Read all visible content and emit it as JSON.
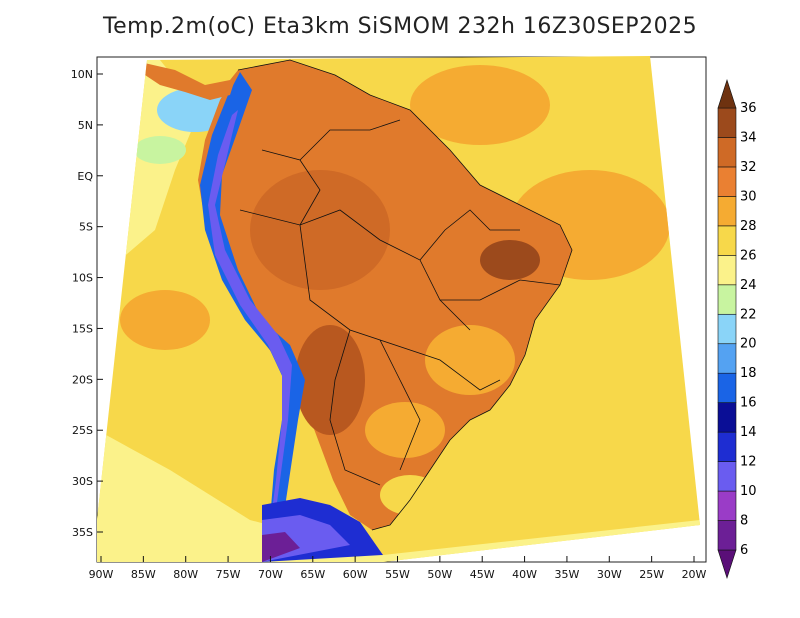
{
  "title": "Temp.2m(oC) Eta3km SiSMOM 232h 16Z30SEP2025",
  "map": {
    "variable": "2 m temperature",
    "units": "oC",
    "region": "South America",
    "lat_range": [
      -38,
      12
    ],
    "lon_range": [
      -91,
      -20
    ],
    "lat_ticks": [
      {
        "lat": 10,
        "label": "10N"
      },
      {
        "lat": 5,
        "label": "5N"
      },
      {
        "lat": 0,
        "label": "EQ"
      },
      {
        "lat": -5,
        "label": "5S"
      },
      {
        "lat": -10,
        "label": "10S"
      },
      {
        "lat": -15,
        "label": "15S"
      },
      {
        "lat": -20,
        "label": "20S"
      },
      {
        "lat": -25,
        "label": "25S"
      },
      {
        "lat": -30,
        "label": "30S"
      },
      {
        "lat": -35,
        "label": "35S"
      }
    ],
    "lon_ticks": [
      {
        "lon": -90,
        "label": "90W"
      },
      {
        "lon": -85,
        "label": "85W"
      },
      {
        "lon": -80,
        "label": "80W"
      },
      {
        "lon": -75,
        "label": "75W"
      },
      {
        "lon": -70,
        "label": "70W"
      },
      {
        "lon": -65,
        "label": "65W"
      },
      {
        "lon": -60,
        "label": "60W"
      },
      {
        "lon": -55,
        "label": "55W"
      },
      {
        "lon": -50,
        "label": "50W"
      },
      {
        "lon": -45,
        "label": "45W"
      },
      {
        "lon": -40,
        "label": "40W"
      },
      {
        "lon": -35,
        "label": "35W"
      },
      {
        "lon": -30,
        "label": "30W"
      },
      {
        "lon": -25,
        "label": "25W"
      },
      {
        "lon": -20,
        "label": "20W"
      }
    ]
  },
  "colorbar": {
    "labels": [
      "6",
      "8",
      "10",
      "12",
      "14",
      "16",
      "18",
      "20",
      "22",
      "24",
      "26",
      "28",
      "30",
      "32",
      "34",
      "36"
    ],
    "bins": [
      {
        "min": 4,
        "max": 6,
        "color": "#5a0f78"
      },
      {
        "min": 6,
        "max": 8,
        "color": "#6c1f96"
      },
      {
        "min": 8,
        "max": 10,
        "color": "#9a3cc7"
      },
      {
        "min": 10,
        "max": 12,
        "color": "#6a5cf0"
      },
      {
        "min": 12,
        "max": 14,
        "color": "#1e2dd2"
      },
      {
        "min": 14,
        "max": 16,
        "color": "#0a0e96"
      },
      {
        "min": 16,
        "max": 18,
        "color": "#1a64e6"
      },
      {
        "min": 18,
        "max": 20,
        "color": "#54a2f2"
      },
      {
        "min": 20,
        "max": 22,
        "color": "#8ad4f8"
      },
      {
        "min": 22,
        "max": 24,
        "color": "#c8f4a0"
      },
      {
        "min": 24,
        "max": 26,
        "color": "#fbf28a"
      },
      {
        "min": 26,
        "max": 28,
        "color": "#f7d84a"
      },
      {
        "min": 28,
        "max": 30,
        "color": "#f5ab32"
      },
      {
        "min": 30,
        "max": 32,
        "color": "#ea8032"
      },
      {
        "min": 32,
        "max": 34,
        "color": "#cf6a26"
      },
      {
        "min": 34,
        "max": 36,
        "color": "#9c4a1c"
      },
      {
        "min": 36,
        "max": 38,
        "color": "#6e3210"
      }
    ]
  },
  "colors": {
    "ocean_warm": "#f7d84a",
    "ocean_mild": "#fbf28a",
    "continent_hot": "#e07a2c",
    "outline": "#111111"
  }
}
